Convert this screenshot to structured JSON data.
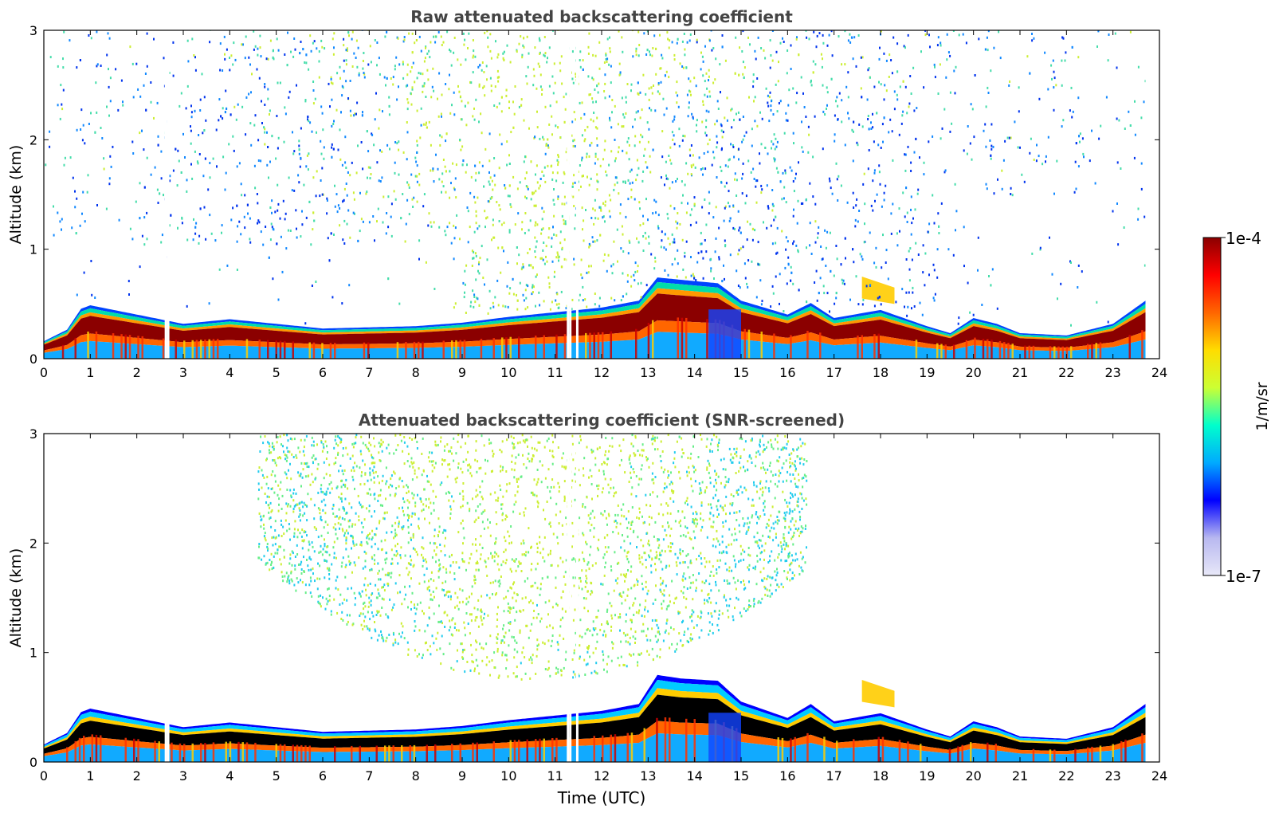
{
  "chart_data": [
    {
      "type": "heatmap",
      "title": "Raw attenuated backscattering coefficient",
      "xlabel": "",
      "ylabel": "Altitude (km)",
      "xlim": [
        0,
        24
      ],
      "ylim": [
        0,
        3
      ],
      "xticks": [
        0,
        1,
        2,
        3,
        4,
        5,
        6,
        7,
        8,
        9,
        10,
        11,
        12,
        13,
        14,
        15,
        16,
        17,
        18,
        19,
        20,
        21,
        22,
        23,
        24
      ],
      "yticks": [
        0,
        1,
        2,
        3
      ],
      "data_end_hour": 23.7,
      "screened": false,
      "boundary_layer_top_km": [
        [
          0,
          0.15
        ],
        [
          0.5,
          0.25
        ],
        [
          0.8,
          0.43
        ],
        [
          1,
          0.46
        ],
        [
          2,
          0.38
        ],
        [
          3,
          0.3
        ],
        [
          4,
          0.34
        ],
        [
          5,
          0.3
        ],
        [
          6,
          0.26
        ],
        [
          7,
          0.27
        ],
        [
          8,
          0.28
        ],
        [
          9,
          0.31
        ],
        [
          10,
          0.36
        ],
        [
          11,
          0.4
        ],
        [
          12,
          0.44
        ],
        [
          12.8,
          0.5
        ],
        [
          13.2,
          0.7
        ],
        [
          13.7,
          0.68
        ],
        [
          14.5,
          0.65
        ],
        [
          15,
          0.5
        ],
        [
          16,
          0.38
        ],
        [
          16.5,
          0.48
        ],
        [
          17,
          0.35
        ],
        [
          18,
          0.42
        ],
        [
          19,
          0.28
        ],
        [
          19.5,
          0.22
        ],
        [
          20,
          0.35
        ],
        [
          20.5,
          0.3
        ],
        [
          21,
          0.22
        ],
        [
          22,
          0.2
        ],
        [
          22.5,
          0.25
        ],
        [
          23,
          0.3
        ],
        [
          23.7,
          0.5
        ]
      ],
      "aerosol_layer": {
        "start_hour": 17.6,
        "end_hour": 18.3,
        "top_km": 0.75,
        "bottom_km": 0.55
      }
    },
    {
      "type": "heatmap",
      "title": "Attenuated backscattering coefficient (SNR-screened)",
      "xlabel": "Time (UTC)",
      "ylabel": "Altitude (km)",
      "xlim": [
        0,
        24
      ],
      "ylim": [
        0,
        3
      ],
      "xticks": [
        0,
        1,
        2,
        3,
        4,
        5,
        6,
        7,
        8,
        9,
        10,
        11,
        12,
        13,
        14,
        15,
        16,
        17,
        18,
        19,
        20,
        21,
        22,
        23,
        24
      ],
      "yticks": [
        0,
        1,
        2,
        3
      ],
      "data_end_hour": 23.7,
      "screened": true,
      "boundary_layer_top_km": [
        [
          0,
          0.15
        ],
        [
          0.5,
          0.25
        ],
        [
          0.8,
          0.43
        ],
        [
          1,
          0.46
        ],
        [
          2,
          0.38
        ],
        [
          3,
          0.3
        ],
        [
          4,
          0.34
        ],
        [
          5,
          0.3
        ],
        [
          6,
          0.26
        ],
        [
          7,
          0.27
        ],
        [
          8,
          0.28
        ],
        [
          9,
          0.31
        ],
        [
          10,
          0.36
        ],
        [
          11,
          0.4
        ],
        [
          12,
          0.44
        ],
        [
          12.8,
          0.5
        ],
        [
          13.2,
          0.75
        ],
        [
          13.7,
          0.72
        ],
        [
          14.5,
          0.7
        ],
        [
          15,
          0.52
        ],
        [
          16,
          0.38
        ],
        [
          16.5,
          0.5
        ],
        [
          17,
          0.35
        ],
        [
          18,
          0.42
        ],
        [
          19,
          0.28
        ],
        [
          19.5,
          0.22
        ],
        [
          20,
          0.35
        ],
        [
          20.5,
          0.3
        ],
        [
          21,
          0.22
        ],
        [
          22,
          0.2
        ],
        [
          22.5,
          0.25
        ],
        [
          23,
          0.3
        ],
        [
          23.7,
          0.5
        ]
      ],
      "aerosol_layer": {
        "start_hour": 17.6,
        "end_hour": 18.3,
        "top_km": 0.75,
        "bottom_km": 0.55
      }
    }
  ],
  "colorbar": {
    "label": "1/m/sr",
    "max_label": "1e-4",
    "min_label": "1e-7",
    "colormap": "jet",
    "stops": [
      "#e8e8f8",
      "#b8b8f0",
      "#0000ff",
      "#00aaff",
      "#00ffcc",
      "#ccff33",
      "#ffdd00",
      "#ff6600",
      "#ff0000",
      "#8b0000"
    ]
  }
}
